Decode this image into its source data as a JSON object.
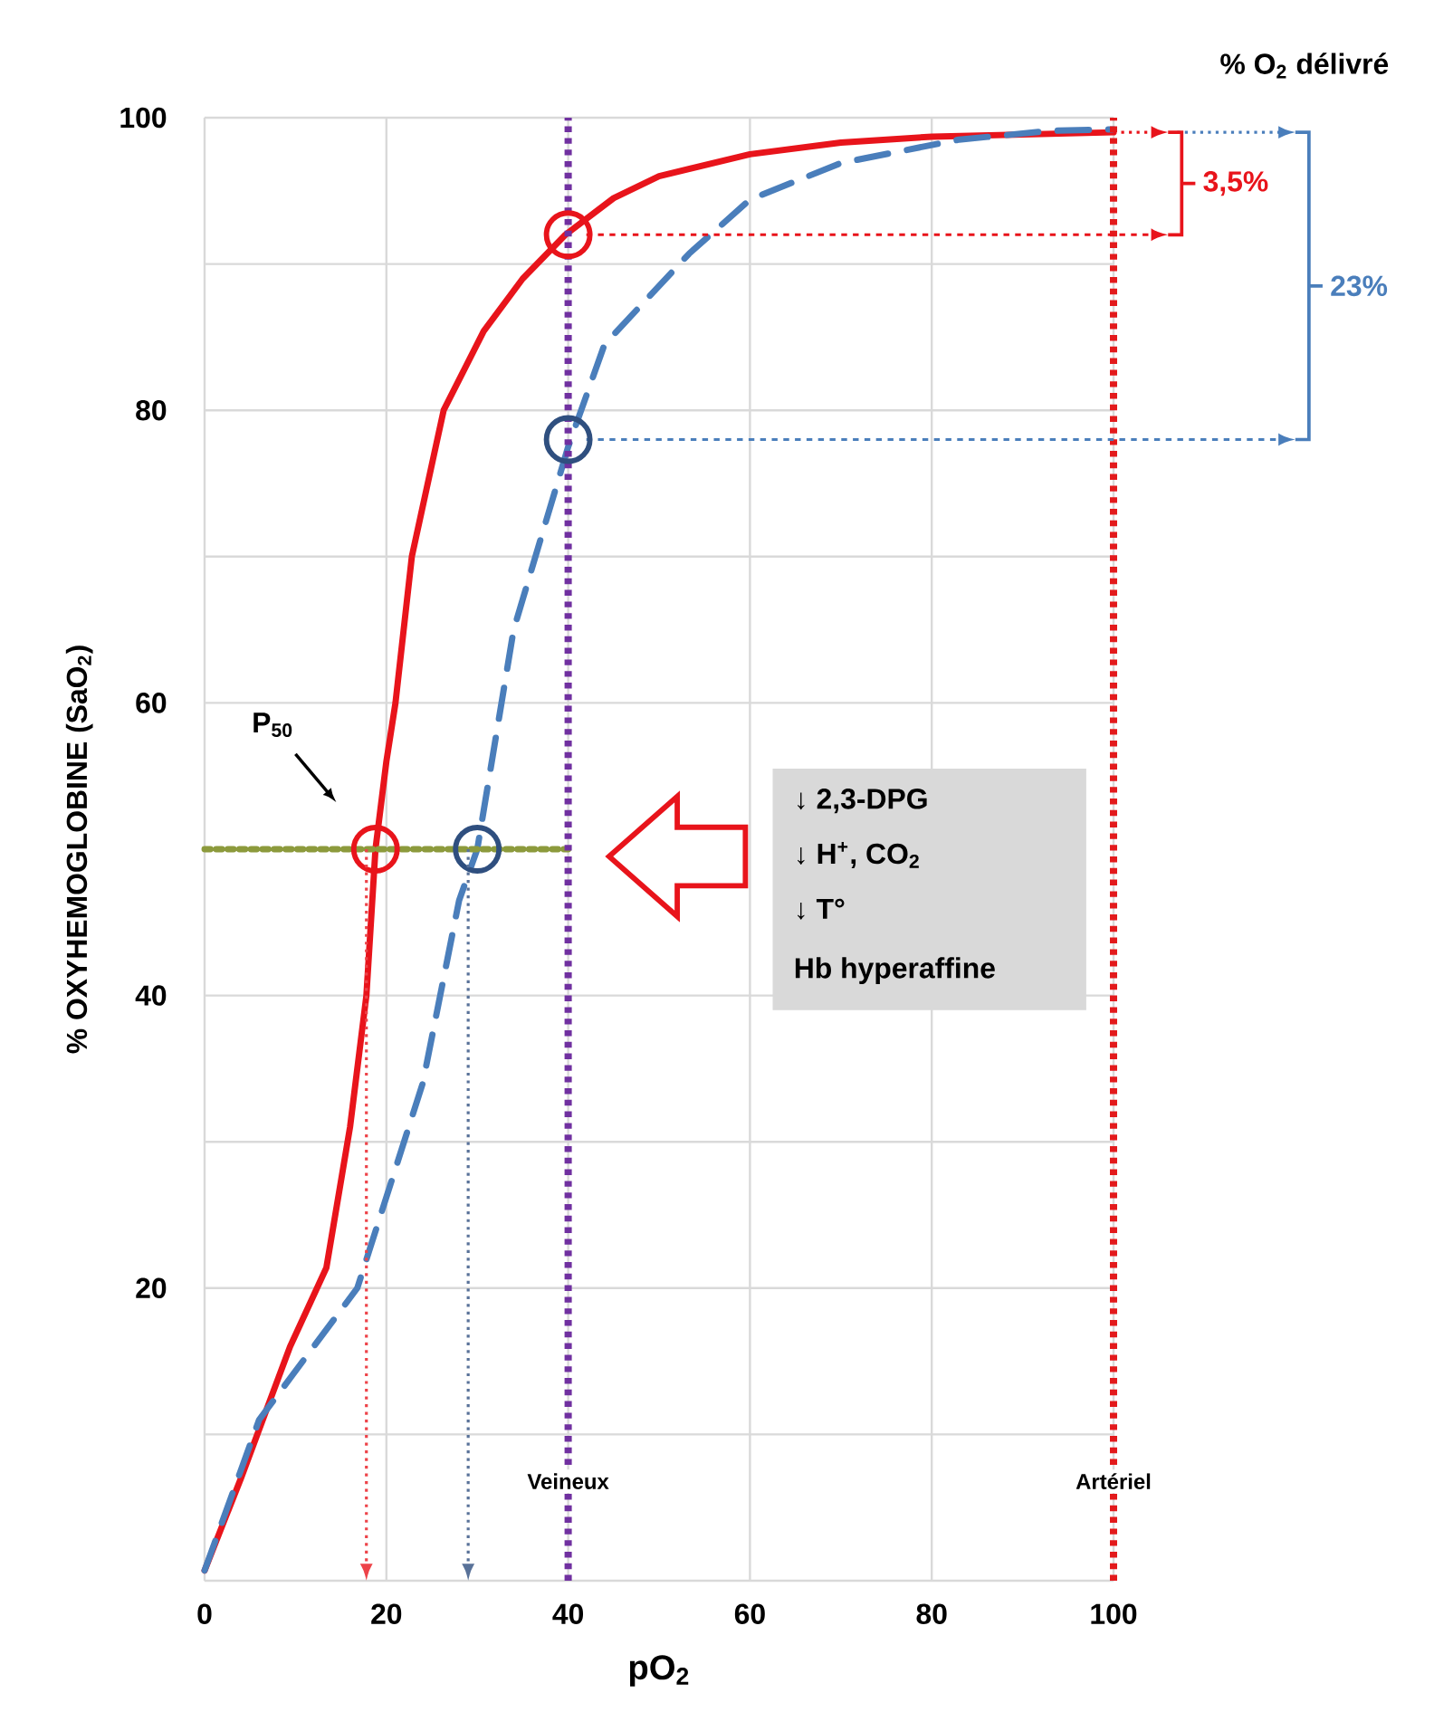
{
  "chart_data": {
    "type": "line",
    "xlabel": "pO$_{2}$",
    "ylabel": "% OXYHEMOGLOBINE   (SaO$_{2}$)",
    "xlim": [
      0,
      100
    ],
    "ylim": [
      0,
      100
    ],
    "xticks": [
      0,
      20,
      40,
      60,
      80,
      100
    ],
    "yticks": [
      {
        "value": 0,
        "label": null
      },
      {
        "value": 10,
        "label": null
      },
      20,
      {
        "value": 30,
        "label": null
      },
      40,
      60,
      {
        "value": 70,
        "label": null
      },
      80,
      {
        "value": 90,
        "label": null
      },
      100
    ],
    "grid": true,
    "series": [
      {
        "type": "line",
        "color": "#e8141b",
        "line_style": "solid",
        "x": [
          0,
          4,
          9.4,
          13.4,
          16,
          17.8,
          18.8,
          20,
          21,
          22.8,
          26.3,
          30.7,
          35,
          39.7,
          45,
          50,
          60,
          70,
          80,
          100
        ],
        "values": [
          0.7,
          7,
          16,
          21.4,
          31,
          40,
          50,
          56,
          60,
          70,
          80,
          85.4,
          89,
          92,
          94.5,
          96,
          97.5,
          98.3,
          98.7,
          99
        ]
      },
      {
        "type": "line",
        "color": "#4a7ebb",
        "line_style": "dashed",
        "x": [
          0,
          6,
          16.8,
          24,
          28,
          30,
          34,
          40,
          44,
          53.3,
          60,
          70,
          83,
          93,
          100
        ],
        "values": [
          0.7,
          11,
          20,
          34,
          46.5,
          50,
          65,
          77.5,
          84.5,
          90.7,
          94.4,
          96.9,
          98.5,
          99.1,
          99.2
        ]
      },
      {
        "type": "line",
        "color": "#8c9a3c",
        "line_style": "dotted",
        "x": [
          0,
          40
        ],
        "values": [
          50,
          50
        ]
      },
      {
        "type": "scatter",
        "marker": "circle",
        "x": [
          18.8,
          30,
          40,
          40
        ],
        "values": [
          50,
          50,
          92,
          78
        ],
        "colors": [
          "#e8141b",
          "#2f4f7f",
          "#e8141b",
          "#2f4f7f"
        ]
      }
    ],
    "ref_lines": [
      {
        "axis": "x",
        "value": 40,
        "label": "Veineux",
        "color": "#7030a0",
        "line_style": "dotted"
      },
      {
        "axis": "x",
        "value": 100,
        "label": "Artériel",
        "color": "#e31a1c",
        "line_style": "dotted"
      },
      {
        "axis": "y",
        "value": 92,
        "color": "#e8141b",
        "line_style": "dotted"
      },
      {
        "axis": "y",
        "value": 78,
        "color": "#4a7ebb",
        "line_style": "dotted"
      }
    ],
    "annotations": [
      "% O$_{2}$ délivré",
      "3,5%",
      "23%",
      "P$_{50}$",
      "↓ 2,3-DPG",
      "↓  H$^{+}$, CO$_{2}$",
      "↓ T°",
      "Hb hyperaffine"
    ]
  }
}
